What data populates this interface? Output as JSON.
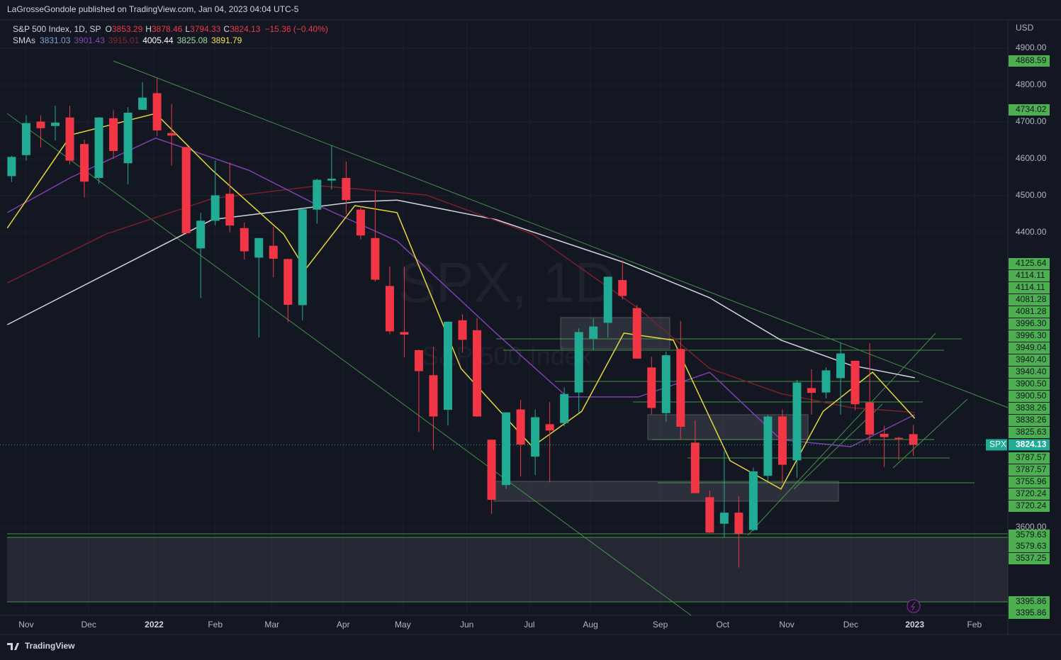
{
  "header": {
    "published": "LaGrosseGondole published on TradingView.com, Jan 04, 2023 04:04 UTC-5",
    "brand": "TradingView"
  },
  "chart_data": {
    "type": "candlestick",
    "symbol": "S&P 500 Index, 1D, SP",
    "ohlc_labels": [
      "O",
      "H",
      "L",
      "C"
    ],
    "ohlc_values": [
      3853.29,
      3878.46,
      3794.33,
      3824.13
    ],
    "change": "−15.36 (−0.40%)",
    "sma_label": "SMAs",
    "sma_legend": [
      {
        "value": 3831.03,
        "color": "#7f9fd4"
      },
      {
        "value": 3901.43,
        "color": "#8e44ad"
      },
      {
        "value": 3915.01,
        "color": "#8b2232"
      },
      {
        "value": 4005.44,
        "color": "#ffffff"
      },
      {
        "value": 3825.08,
        "color": "#a5d6a7"
      },
      {
        "value": 3891.79,
        "color": "#f2e14c"
      }
    ],
    "watermark": "SPX, 1D",
    "watermark_sub": "S&P 500 Index",
    "currency": "USD",
    "ticker": "SPX",
    "last_price": 3824.13,
    "up_color": "#22ab94",
    "down_color": "#f23645",
    "x": [
      -1,
      0,
      1,
      2,
      3,
      4,
      5,
      6,
      7,
      8,
      9,
      10,
      11,
      12,
      13,
      14,
      15,
      16,
      17,
      18,
      19,
      20,
      21,
      22,
      23,
      24,
      25,
      26,
      27,
      28,
      29,
      30,
      31,
      32,
      33,
      34,
      35,
      36,
      37,
      38,
      39,
      40,
      41,
      42,
      43,
      44,
      45,
      46,
      47,
      48,
      49,
      50,
      51,
      52,
      53,
      54,
      55,
      56,
      57,
      58,
      59,
      60,
      61
    ],
    "open": [
      4553,
      4610,
      4701,
      4689,
      4712,
      4640,
      4548,
      4710,
      4588,
      4733,
      4778,
      4670,
      4632,
      4357,
      4432,
      4505,
      4412,
      4332,
      4364,
      4328,
      4203,
      4462,
      4541,
      4548,
      4462,
      4385,
      4255,
      4130,
      4081,
      4013,
      3919,
      4162,
      4135,
      3838,
      3715,
      3920,
      3792,
      3880,
      3883,
      3966,
      4112,
      4155,
      4271,
      4195,
      4034,
      3910,
      4084,
      3830,
      3682,
      3610,
      3640,
      3593,
      3740,
      3901,
      3782,
      3978,
      3966,
      4005,
      4052,
      3939,
      3854,
      3843,
      3853
    ],
    "high": [
      4608,
      4718,
      4718,
      4744,
      4744,
      4652,
      4713,
      4732,
      4740,
      4808,
      4819,
      4749,
      4632,
      4453,
      4595,
      4590,
      4427,
      4385,
      4416,
      4329,
      4466,
      4546,
      4637,
      4593,
      4471,
      4513,
      4308,
      4307,
      4082,
      4090,
      4158,
      4178,
      4168,
      3838,
      3913,
      3946,
      3920,
      3940,
      3980,
      4140,
      4167,
      4280,
      4325,
      4203,
      4063,
      4077,
      4160,
      3890,
      3700,
      3807,
      3685,
      3762,
      3905,
      3920,
      4000,
      4029,
      4034,
      4101,
      4052,
      4100,
      3876,
      3846,
      3878
    ],
    "low": [
      4537,
      4595,
      4631,
      4650,
      4585,
      4495,
      4532,
      4600,
      4531,
      4733,
      4662,
      4582,
      4395,
      4222,
      4420,
      4401,
      4327,
      4115,
      4279,
      4157,
      4162,
      4424,
      4517,
      4450,
      4381,
      4267,
      4124,
      4062,
      3859,
      3811,
      3876,
      4074,
      3900,
      3637,
      3705,
      3738,
      3742,
      3722,
      3874,
      3910,
      4080,
      4115,
      4218,
      4057,
      3907,
      3887,
      3838,
      3693,
      3584,
      3572,
      3491,
      3590,
      3725,
      3720,
      3735,
      3906,
      3950,
      3906,
      3918,
      3827,
      3764,
      3783,
      3794
    ],
    "close": [
      4605,
      4697,
      4683,
      4698,
      4595,
      4538,
      4712,
      4621,
      4725,
      4766,
      4677,
      4663,
      4398,
      4432,
      4501,
      4419,
      4349,
      4385,
      4329,
      4204,
      4463,
      4543,
      4546,
      4488,
      4392,
      4272,
      4132,
      4123,
      4024,
      3901,
      4158,
      4109,
      3901,
      3675,
      3912,
      3825,
      3899,
      3863,
      3962,
      4130,
      4145,
      4280,
      4228,
      4058,
      3924,
      4067,
      3873,
      3693,
      3586,
      3640,
      3583,
      3752,
      3901,
      3770,
      3993,
      3965,
      4026,
      4072,
      3934,
      3852,
      3845,
      3840,
      3824
    ],
    "sma_series": [
      {
        "color": "#d1d4dc",
        "x": [
          -1.3,
          12.8,
          22.6,
          25.5,
          32.3,
          41.1,
          47,
          51.9,
          56.7,
          61.1
        ],
        "values": [
          4150,
          4435,
          4483,
          4488,
          4435,
          4319,
          4223,
          4108,
          4040,
          4006
        ]
      },
      {
        "color": "#7b1f2a",
        "x": [
          -1.3,
          5.5,
          12.8,
          20.1,
          27.5,
          34.8,
          42.1,
          47,
          51.9,
          56.7,
          61.1
        ],
        "values": [
          4263,
          4396,
          4492,
          4527,
          4502,
          4396,
          4194,
          4031,
          3963,
          3925,
          3912
        ]
      },
      {
        "color": "#7e3fae",
        "x": [
          -1.3,
          3.1,
          8.9,
          15.3,
          20.1,
          25.5,
          32.3,
          37.2,
          42.1,
          47,
          51.9,
          56.7,
          61.1
        ],
        "values": [
          4454,
          4550,
          4656,
          4569,
          4473,
          4377,
          4127,
          3954,
          3954,
          4021,
          3838,
          3819,
          3906
        ]
      },
      {
        "color": "#e6d83a",
        "x": [
          -1.3,
          3.1,
          8.9,
          12.8,
          17.7,
          19.2,
          22.6,
          25.5,
          29.9,
          34.8,
          38.2,
          41.1,
          44.5,
          48.4,
          51.9,
          54.8,
          58.2,
          61.1
        ],
        "values": [
          4412,
          4665,
          4723,
          4569,
          4396,
          4300,
          4473,
          4454,
          4031,
          3819,
          3915,
          4127,
          4108,
          3781,
          3704,
          3915,
          4021,
          3896
        ]
      }
    ],
    "xlim": [
      -1.8,
      67.5
    ],
    "xticks": [
      {
        "value": 0,
        "label": "Nov"
      },
      {
        "value": 4.3,
        "label": "Dec"
      },
      {
        "value": 8.8,
        "label": "2022"
      },
      {
        "value": 13.0,
        "label": "Feb"
      },
      {
        "value": 16.9,
        "label": "Mar"
      },
      {
        "value": 21.8,
        "label": "Apr"
      },
      {
        "value": 25.9,
        "label": "May"
      },
      {
        "value": 30.3,
        "label": "Jun"
      },
      {
        "value": 34.6,
        "label": "Jul"
      },
      {
        "value": 38.8,
        "label": "Aug"
      },
      {
        "value": 43.6,
        "label": "Sep"
      },
      {
        "value": 47.9,
        "label": "Oct"
      },
      {
        "value": 52.3,
        "label": "Nov"
      },
      {
        "value": 56.7,
        "label": "Dec"
      },
      {
        "value": 61.1,
        "label": "2023"
      },
      {
        "value": 65.2,
        "label": "Feb"
      }
    ],
    "ylim": [
      3361.5,
      4976.9
    ],
    "yticks": [
      {
        "value": 4900,
        "label": "4900.00"
      },
      {
        "value": 4800,
        "label": "4800.00"
      },
      {
        "value": 4700,
        "label": "4700.00"
      },
      {
        "value": 4600,
        "label": "4600.00"
      },
      {
        "value": 4500,
        "label": "4500.00"
      },
      {
        "value": 4400,
        "label": "4400.00"
      },
      {
        "value": 3600,
        "label": "3600.00"
      }
    ],
    "price_labels": [
      "4868.59",
      "4734.02",
      "4125.64",
      "4114.11",
      "4114.11",
      "4081.28",
      "4081.28",
      "3996.30",
      "3996.30",
      "3949.04",
      "3940.40",
      "3940.40",
      "3900.50",
      "3900.50",
      "3838.26",
      "3838.26",
      "3825.63",
      "3787.57",
      "3787.57",
      "3755.96",
      "3720.24",
      "3720.24",
      "3579.63",
      "3579.63",
      "3537.25",
      "3395.86",
      "3395.86"
    ]
  }
}
